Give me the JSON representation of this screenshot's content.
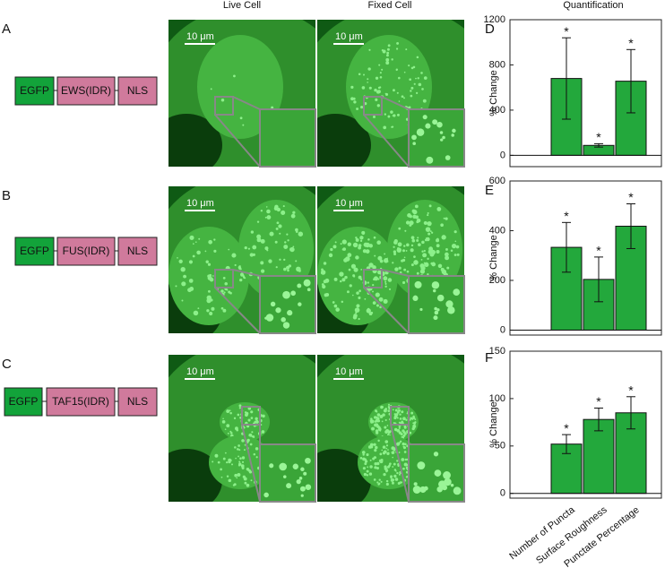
{
  "column_headers": [
    "Live Cell",
    "Fixed Cell",
    "Quantification"
  ],
  "rows": [
    {
      "label": "A",
      "construct": [
        "EGFP",
        "EWS(IDR)",
        "NLS"
      ],
      "scale_bars": [
        "10 μm",
        "10 μm"
      ]
    },
    {
      "label": "B",
      "construct": [
        "EGFP",
        "FUS(IDR)",
        "NLS"
      ],
      "scale_bars": [
        "10 μm",
        "10 μm"
      ]
    },
    {
      "label": "C",
      "construct": [
        "EGFP",
        "TAF15(IDR)",
        "NLS"
      ],
      "scale_bars": [
        "10 μm",
        "10 μm"
      ]
    }
  ],
  "chart_data": [
    {
      "type": "bar",
      "panel_label": "D",
      "ylabel": "% Change",
      "color": "#23a83c",
      "values": [
        680,
        88,
        656
      ],
      "errors": [
        360,
        15,
        280
      ],
      "annotations": [
        "*",
        "*",
        "*"
      ],
      "ylim": [
        -100,
        1200
      ],
      "yticks": [
        0,
        400,
        800,
        1200
      ]
    },
    {
      "type": "bar",
      "panel_label": "E",
      "ylabel": "% Change",
      "color": "#23a83c",
      "values": [
        333,
        204,
        418
      ],
      "errors": [
        100,
        90,
        90
      ],
      "annotations": [
        "*",
        "*",
        "*"
      ],
      "ylim": [
        -20,
        600
      ],
      "yticks": [
        0,
        200,
        400,
        600
      ]
    },
    {
      "type": "bar",
      "panel_label": "F",
      "ylabel": "% Change",
      "color": "#23a83c",
      "categories": [
        "Number of Puncta",
        "Surface Roughness",
        "Punctate Percentage"
      ],
      "values": [
        52,
        78,
        85
      ],
      "errors": [
        10,
        12,
        17
      ],
      "annotations": [
        "*",
        "*",
        "*"
      ],
      "ylim": [
        -5,
        150
      ],
      "yticks": [
        0,
        50,
        100,
        150
      ]
    }
  ]
}
